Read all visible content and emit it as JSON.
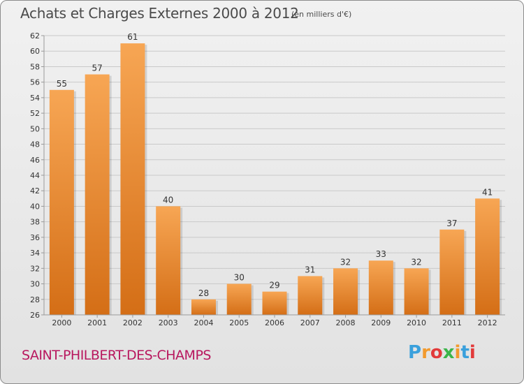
{
  "header": {
    "title": "Achats et Charges Externes 2000 à 2012",
    "subtitle": "(en milliers d'€)"
  },
  "footer": {
    "commune": "SAINT-PHILBERT-DES-CHAMPS",
    "logo_letters": [
      "P",
      "r",
      "o",
      "x",
      "i",
      "t",
      "i"
    ],
    "logo_colors": [
      "#3aa0dc",
      "#f29a2e",
      "#e23a3a",
      "#3ab54a",
      "#f29a2e",
      "#3aa0dc",
      "#e23a3a"
    ]
  },
  "colors": {
    "bar_top": "#f7a654",
    "bar_bottom": "#d46e16",
    "grid": "#c9c9c9",
    "axis": "#9a9a9a"
  },
  "chart_data": {
    "type": "bar",
    "categories": [
      "2000",
      "2001",
      "2002",
      "2003",
      "2004",
      "2005",
      "2006",
      "2007",
      "2008",
      "2009",
      "2010",
      "2011",
      "2012"
    ],
    "values": [
      55,
      57,
      61,
      40,
      28,
      30,
      29,
      31,
      32,
      33,
      32,
      37,
      41
    ],
    "title": "Achats et Charges Externes 2000 à 2012",
    "subtitle": "(en milliers d'€)",
    "ylim": [
      26,
      62
    ],
    "yticks": [
      26,
      28,
      30,
      32,
      34,
      36,
      38,
      40,
      42,
      44,
      46,
      48,
      50,
      52,
      54,
      56,
      58,
      60,
      62
    ],
    "grid": true,
    "data_labels": true
  }
}
